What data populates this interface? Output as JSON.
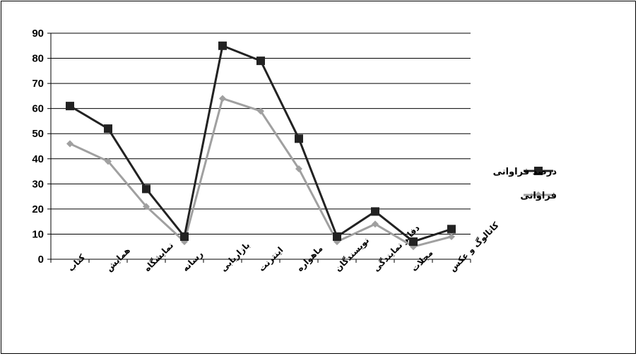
{
  "chart_data": {
    "type": "line",
    "categories": [
      "کتاب",
      "همایش",
      "نمایشگاه",
      "رسانه",
      "بازاریابی",
      "اینترنت",
      "ماهواره",
      "نویسندگان",
      "دفاتر نمایندگی",
      "مجلات",
      "کاتالوگ و عکس"
    ],
    "series": [
      {
        "name": "درصد فراوانی",
        "values": [
          61,
          52,
          28,
          9,
          85,
          79,
          48,
          9,
          19,
          7,
          12
        ],
        "color": "#222222",
        "marker": "square"
      },
      {
        "name": "فراوانی",
        "values": [
          46,
          39,
          21,
          7,
          64,
          59,
          36,
          7,
          14,
          5,
          9
        ],
        "color": "#a0a0a0",
        "marker": "diamond"
      }
    ],
    "yticks": [
      0,
      10,
      20,
      30,
      40,
      50,
      60,
      70,
      80,
      90
    ],
    "ylim": [
      0,
      90
    ],
    "grid": true,
    "legend": "right"
  }
}
